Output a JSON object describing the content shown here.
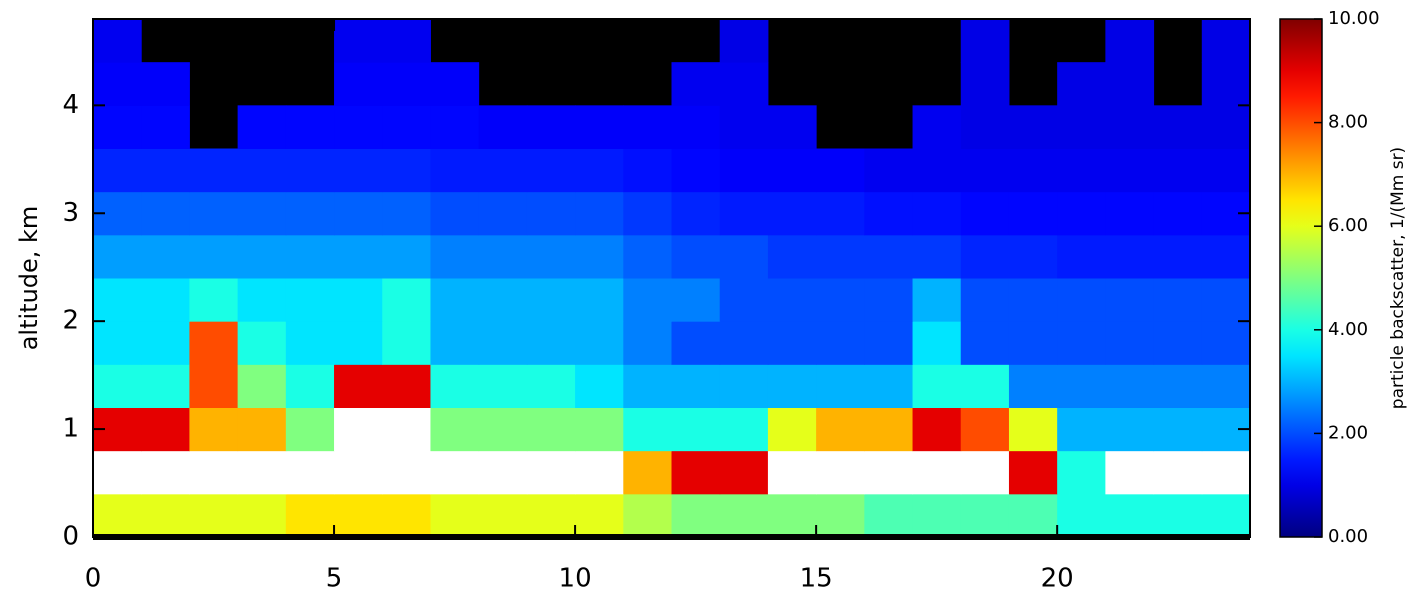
{
  "chart_data": {
    "type": "heatmap",
    "ylabel": "altitude, km",
    "x_bins": [
      0,
      1,
      2,
      3,
      4,
      5,
      6,
      7,
      8,
      9,
      10,
      11,
      12,
      13,
      14,
      15,
      16,
      17,
      18,
      19,
      20,
      21,
      22,
      23,
      24
    ],
    "y_bins": [
      0,
      0.4,
      0.8,
      1.2,
      1.6,
      2.0,
      2.4,
      2.8,
      3.2,
      3.6,
      4.0,
      4.4,
      4.8
    ],
    "z": [
      [
        6,
        6,
        6,
        6,
        6.5,
        6.5,
        6.5,
        6,
        6,
        6,
        6,
        5.5,
        5,
        5,
        5,
        5,
        4.5,
        4.5,
        4.5,
        4.5,
        4,
        4,
        4,
        4
      ],
      [
        12,
        12,
        12,
        12,
        12,
        12,
        12,
        12,
        12,
        12,
        12,
        7,
        9,
        9,
        12,
        12,
        12,
        12,
        12,
        9,
        4,
        12,
        12,
        12
      ],
      [
        9,
        9,
        7,
        7,
        5,
        12,
        12,
        5,
        5,
        5,
        5,
        4,
        4,
        4,
        6,
        7,
        7,
        9,
        8,
        6,
        3,
        3,
        3,
        3
      ],
      [
        4,
        4,
        8,
        5,
        4,
        9,
        9,
        4,
        4,
        4,
        3.5,
        3,
        3,
        3,
        3,
        3,
        3,
        4,
        4,
        2.5,
        2.5,
        2.5,
        2.5,
        2.5
      ],
      [
        3.5,
        3.5,
        8,
        4,
        3.5,
        3.5,
        4,
        3,
        3,
        3,
        3,
        2.5,
        2,
        2,
        2,
        2,
        2,
        3.5,
        2,
        2,
        2,
        2,
        2,
        2
      ],
      [
        3.5,
        3.5,
        4,
        3.5,
        3.5,
        3.5,
        4,
        3,
        3,
        3,
        3,
        2.5,
        2.5,
        2,
        2,
        2,
        2,
        3,
        2,
        2,
        2,
        2,
        2,
        2
      ],
      [
        2.8,
        2.8,
        2.8,
        2.8,
        2.8,
        2.8,
        2.8,
        2.5,
        2.5,
        2.5,
        2.5,
        2.2,
        2,
        2,
        1.8,
        1.8,
        1.8,
        1.8,
        1.6,
        1.6,
        1.5,
        1.5,
        1.5,
        1.5
      ],
      [
        2.2,
        2.2,
        2.2,
        2.2,
        2.2,
        2.2,
        2.2,
        2,
        2,
        2,
        2,
        1.8,
        1.6,
        1.5,
        1.5,
        1.5,
        1.4,
        1.4,
        1.3,
        1.3,
        1.3,
        1.3,
        1.3,
        1.3
      ],
      [
        1.6,
        1.6,
        1.6,
        1.6,
        1.6,
        1.6,
        1.6,
        1.5,
        1.5,
        1.5,
        1.5,
        1.4,
        1.3,
        1.2,
        1.2,
        1.2,
        1.1,
        1.1,
        1.1,
        1.1,
        1.1,
        1.1,
        1.1,
        1.1
      ],
      [
        1.3,
        1.3,
        null,
        1.3,
        1.3,
        1.3,
        1.3,
        1.3,
        1.2,
        1.2,
        1.2,
        1.2,
        1.2,
        1.1,
        1.1,
        null,
        null,
        1.1,
        1,
        1,
        1,
        1,
        1,
        1
      ],
      [
        1.2,
        1.2,
        null,
        null,
        null,
        1.2,
        1.2,
        1.2,
        null,
        null,
        null,
        null,
        1.1,
        1.1,
        null,
        null,
        null,
        null,
        1,
        null,
        1,
        1,
        null,
        1
      ],
      [
        1.1,
        null,
        null,
        null,
        null,
        1.1,
        1.1,
        null,
        null,
        null,
        null,
        null,
        null,
        1,
        null,
        null,
        null,
        null,
        1,
        null,
        null,
        1,
        null,
        1
      ]
    ],
    "xlim": [
      0,
      24
    ],
    "ylim": [
      0,
      4.8
    ],
    "xticks": [
      0,
      5,
      10,
      15,
      20
    ],
    "yticks": [
      0,
      1,
      2,
      3,
      4
    ],
    "colormap": "jet",
    "missing_color": "#000000",
    "colorbar": {
      "label": "particle backscatter, 1/(Mm sr)",
      "lim": [
        0,
        10
      ],
      "over_color": "#ffffff",
      "ticks": [
        {
          "value": 0,
          "label": "0.00"
        },
        {
          "value": 2,
          "label": "2.00"
        },
        {
          "value": 4,
          "label": "4.00"
        },
        {
          "value": 6,
          "label": "6.00"
        },
        {
          "value": 8,
          "label": "8.00"
        },
        {
          "value": 10,
          "label": "10.00"
        }
      ]
    }
  }
}
